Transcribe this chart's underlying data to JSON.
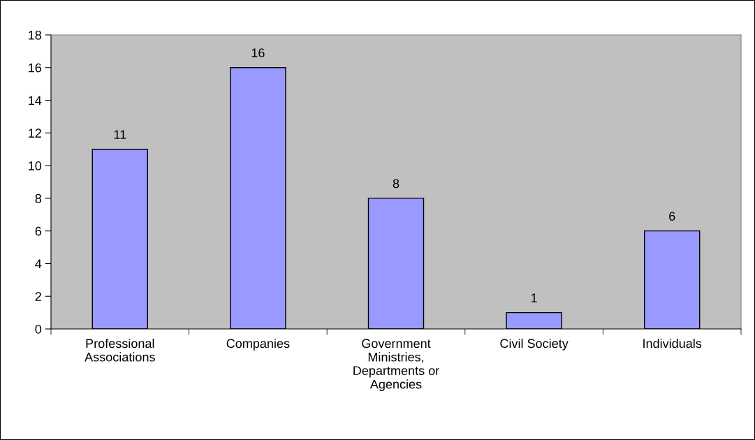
{
  "chart_data": {
    "type": "bar",
    "categories": [
      "Professional\nAssociations",
      "Companies",
      "Government\nMinistries,\nDepartments or\nAgencies",
      "Civil Society",
      "Individuals"
    ],
    "values": [
      11,
      16,
      8,
      1,
      6
    ],
    "color": "#9999ff",
    "ylim": [
      0,
      18
    ],
    "yticks": [
      0,
      2,
      4,
      6,
      8,
      10,
      12,
      14,
      16,
      18
    ],
    "data_labels": true,
    "grid": false,
    "legend": false
  }
}
